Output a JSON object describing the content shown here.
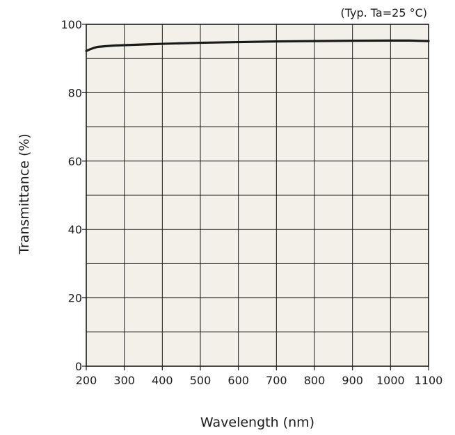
{
  "chart_data": {
    "type": "line",
    "title": "",
    "annotation": "(Typ. Ta=25 °C)",
    "xlabel": "Wavelength (nm)",
    "ylabel": "Transmittance (%)",
    "xlim": [
      200,
      1100
    ],
    "ylim": [
      0,
      100
    ],
    "x_ticks": [
      200,
      300,
      400,
      500,
      600,
      700,
      800,
      900,
      1000,
      1100
    ],
    "y_ticks": [
      0,
      20,
      40,
      60,
      80,
      100
    ],
    "x_tick_labels": [
      "200",
      "300",
      "400",
      "500",
      "600",
      "700",
      "800",
      "900",
      "1000",
      "1100"
    ],
    "y_tick_labels": [
      "0",
      "20",
      "40",
      "60",
      "80",
      "100"
    ],
    "grid": true,
    "plot_background": "#f2f0e8",
    "line_color": "#1a1a1a",
    "series": [
      {
        "x": [
          200,
          210,
          220,
          230,
          250,
          275,
          300,
          350,
          400,
          500,
          600,
          700,
          800,
          900,
          1000,
          1050,
          1100
        ],
        "values": [
          92.2,
          92.7,
          93.1,
          93.4,
          93.6,
          93.8,
          93.9,
          94.1,
          94.3,
          94.6,
          94.8,
          95.0,
          95.1,
          95.2,
          95.25,
          95.25,
          95.1
        ]
      }
    ]
  }
}
